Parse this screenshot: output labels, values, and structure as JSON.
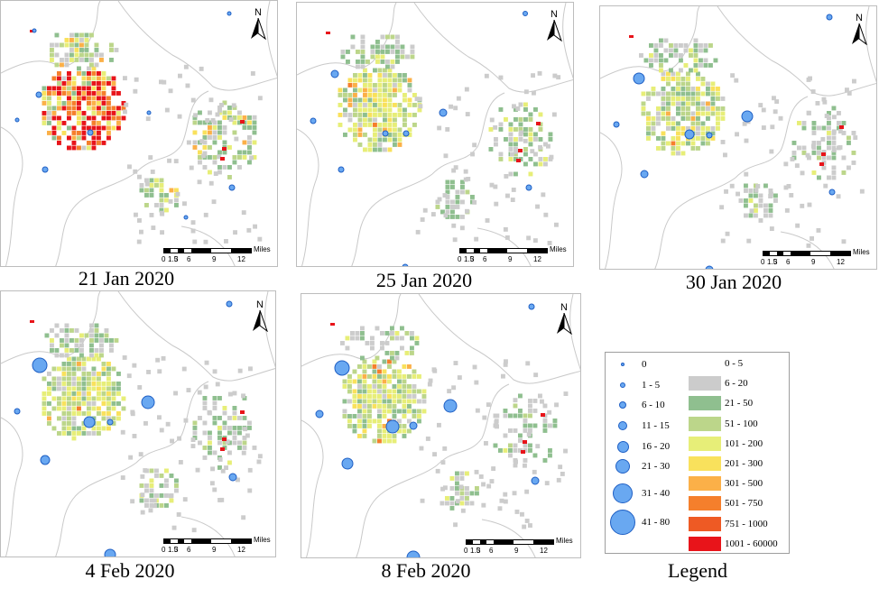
{
  "panels": [
    {
      "id": "p1",
      "caption": "21 Jan 2020",
      "palette": "hot"
    },
    {
      "id": "p2",
      "caption": "25 Jan 2020",
      "palette": "mid"
    },
    {
      "id": "p3",
      "caption": "30 Jan 2020",
      "palette": "cool"
    },
    {
      "id": "p4",
      "caption": "4 Feb 2020",
      "palette": "cool"
    },
    {
      "id": "p5",
      "caption": "8 Feb 2020",
      "palette": "cool"
    }
  ],
  "north_arrow": {
    "letter": "N"
  },
  "scale_bar": {
    "units": "Miles",
    "ticks": [
      "0",
      "1.5",
      "3",
      "6",
      "9",
      "12"
    ]
  },
  "legend": {
    "title": "Legend",
    "circle_classes": [
      "0",
      "1 - 5",
      "6 - 10",
      "11 - 15",
      "16 - 20",
      "21 - 30",
      "31 - 40",
      "41 - 80"
    ],
    "density_classes": [
      {
        "label": "0 - 5",
        "color": "#ffffff"
      },
      {
        "label": "6 - 20",
        "color": "#cccccc"
      },
      {
        "label": "21 - 50",
        "color": "#8fbf8f"
      },
      {
        "label": "51 - 100",
        "color": "#bcd68a"
      },
      {
        "label": "101 - 200",
        "color": "#e7ee78"
      },
      {
        "label": "201 - 300",
        "color": "#f9e15c"
      },
      {
        "label": "301 - 500",
        "color": "#fbb048"
      },
      {
        "label": "501 - 750",
        "color": "#f57f2c"
      },
      {
        "label": "751 - 1000",
        "color": "#ee5a24"
      },
      {
        "label": "1001 - 60000",
        "color": "#e8141a"
      }
    ],
    "circle_fill": "#69a8f1",
    "circle_stroke": "#1f5fc4"
  }
}
